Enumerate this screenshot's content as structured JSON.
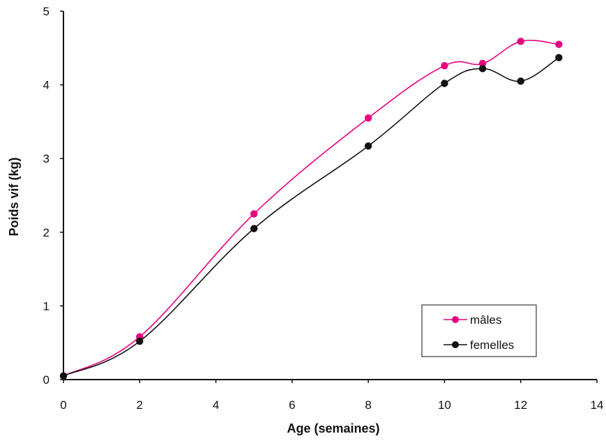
{
  "chart_data": {
    "type": "line",
    "xlabel": "Age (semaines)",
    "ylabel": "Poids vif (kg)",
    "xlim": [
      0,
      14
    ],
    "ylim": [
      0,
      5
    ],
    "xticks": [
      "0",
      "2",
      "4",
      "6",
      "8",
      "10",
      "12",
      "14"
    ],
    "yticks": [
      "0",
      "1",
      "2",
      "3",
      "4",
      "5"
    ],
    "grid": false,
    "legend_position": "bottom-right",
    "series": [
      {
        "name": "mâles",
        "color": "#e6007e",
        "x": [
          0,
          2,
          5,
          8,
          10,
          11,
          12,
          13
        ],
        "y": [
          0.05,
          0.58,
          2.25,
          3.55,
          4.26,
          4.29,
          4.59,
          4.55
        ]
      },
      {
        "name": "femelles",
        "color": "#111111",
        "x": [
          0,
          2,
          5,
          8,
          10,
          11,
          12,
          13
        ],
        "y": [
          0.05,
          0.52,
          2.05,
          3.17,
          4.02,
          4.22,
          4.05,
          4.37
        ]
      }
    ]
  }
}
